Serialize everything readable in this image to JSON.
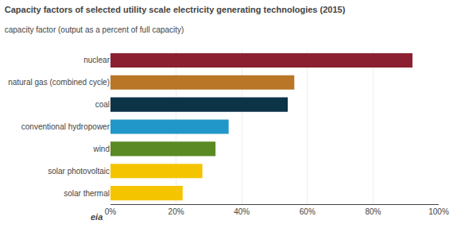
{
  "chart_data": {
    "type": "bar",
    "orientation": "horizontal",
    "title": "Capacity factors of selected utility scale electricity generating technologies (2015)",
    "subtitle": "capacity factor (output as a percent of full capacity)",
    "categories": [
      "solar thermal",
      "solar photovoltaic",
      "wind",
      "conventional hydropower",
      "coal",
      "natural gas (combined cycle)",
      "nuclear"
    ],
    "values": [
      0.22,
      0.28,
      0.32,
      0.36,
      0.54,
      0.56,
      0.92
    ],
    "colors": [
      "#f5c400",
      "#f5c400",
      "#5a8a24",
      "#2196c8",
      "#0d3347",
      "#b87626",
      "#8b2030"
    ],
    "xlim": [
      0,
      1.0
    ],
    "xticks": [
      {
        "value": 0,
        "label": "0%"
      },
      {
        "value": 0.2,
        "label": "20%"
      },
      {
        "value": 0.4,
        "label": "40%"
      },
      {
        "value": 0.6,
        "label": "60%"
      },
      {
        "value": 0.8,
        "label": "80%"
      },
      {
        "value": 1.0,
        "label": "100%"
      }
    ],
    "grid": true,
    "annotations": [
      "eia"
    ]
  }
}
